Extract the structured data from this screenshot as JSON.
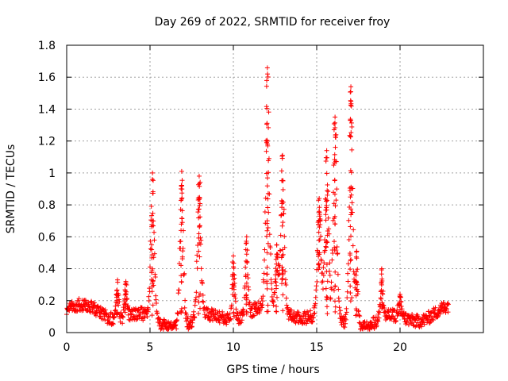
{
  "chart_data": {
    "type": "scatter",
    "title": "Day 269 of 2022, SRMTID for receiver froy",
    "xlabel": "GPS time / hours",
    "ylabel": "SRMTID / TECUs",
    "xlim": [
      0,
      25
    ],
    "ylim": [
      0,
      1.8
    ],
    "xticks": [
      0,
      5,
      10,
      15,
      20
    ],
    "xtick_labels": [
      "0",
      "5",
      "10",
      "15",
      "20"
    ],
    "yticks": [
      0,
      0.2,
      0.4,
      0.6,
      0.8,
      1.0,
      1.2,
      1.4,
      1.6,
      1.8
    ],
    "ytick_labels": [
      "0",
      "0.2",
      "0.4",
      "0.6",
      "0.8",
      "1",
      "1.2",
      "1.4",
      "1.6",
      "1.8"
    ],
    "grid": true,
    "marker": "+",
    "color": "#ff0000",
    "series": [
      {
        "name": "SRMTID",
        "x_range": [
          0,
          22.9
        ],
        "baseline": 0.1,
        "events": [
          {
            "center": 3.05,
            "peak": 0.33
          },
          {
            "center": 3.55,
            "peak": 0.32
          },
          {
            "center": 5.15,
            "peak": 1.0
          },
          {
            "center": 6.9,
            "peak": 1.01
          },
          {
            "center": 7.95,
            "peak": 0.98
          },
          {
            "center": 10.0,
            "peak": 0.48
          },
          {
            "center": 10.8,
            "peak": 0.6
          },
          {
            "center": 12.05,
            "peak": 1.62
          },
          {
            "center": 12.6,
            "peak": 0.55
          },
          {
            "center": 12.95,
            "peak": 1.11
          },
          {
            "center": 15.15,
            "peak": 0.84
          },
          {
            "center": 15.6,
            "peak": 1.14
          },
          {
            "center": 16.1,
            "peak": 1.35
          },
          {
            "center": 17.05,
            "peak": 1.54
          },
          {
            "center": 17.4,
            "peak": 0.51
          },
          {
            "center": 18.9,
            "peak": 0.4
          },
          {
            "center": 20.0,
            "peak": 0.22
          }
        ]
      }
    ]
  }
}
